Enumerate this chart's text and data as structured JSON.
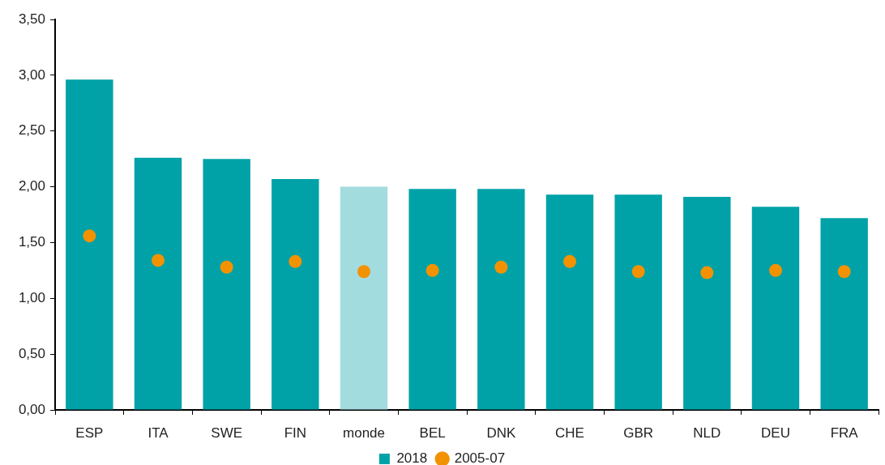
{
  "chart_data": {
    "type": "bar",
    "categories": [
      "ESP",
      "ITA",
      "SWE",
      "FIN",
      "monde",
      "BEL",
      "DNK",
      "CHE",
      "GBR",
      "NLD",
      "DEU",
      "FRA"
    ],
    "series": [
      {
        "name": "2018",
        "color": "#00a2a7",
        "colors": [
          "#00a2a7",
          "#00a2a7",
          "#00a2a7",
          "#00a2a7",
          "#a3dcdf",
          "#00a2a7",
          "#00a2a7",
          "#00a2a7",
          "#00a2a7",
          "#00a2a7",
          "#00a2a7",
          "#00a2a7"
        ],
        "values": [
          2.96,
          2.26,
          2.25,
          2.07,
          2.0,
          1.98,
          1.98,
          1.93,
          1.93,
          1.91,
          1.82,
          1.72
        ]
      },
      {
        "name": "2005-07",
        "type": "scatter",
        "color": "#f39200",
        "marker": "circle",
        "x": [
          "ESP",
          "ITA",
          "SWE",
          "FIN",
          "monde",
          "BEL",
          "DNK",
          "CHE",
          "GBR",
          "NLD",
          "DEU",
          "FRA"
        ],
        "values": [
          1.56,
          1.34,
          1.28,
          1.33,
          1.24,
          1.25,
          1.28,
          1.33,
          1.24,
          1.23,
          1.25,
          1.24
        ]
      }
    ],
    "ylim": [
      0,
      3.5
    ],
    "yticks": [
      {
        "value": 0,
        "label": "0,00"
      },
      {
        "value": 0.5,
        "label": "0,50"
      },
      {
        "value": 1,
        "label": "1,00"
      },
      {
        "value": 1.5,
        "label": "1,50"
      },
      {
        "value": 2,
        "label": "2,00"
      },
      {
        "value": 2.5,
        "label": "2,50"
      },
      {
        "value": 3,
        "label": "3,00"
      },
      {
        "value": 3.5,
        "label": "3,50"
      }
    ],
    "legend": "bottom"
  }
}
